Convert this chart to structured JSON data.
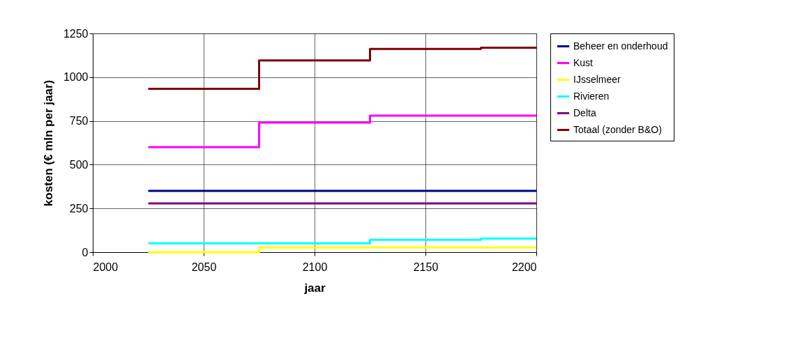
{
  "chart_data": {
    "type": "step",
    "xlabel": "jaar",
    "ylabel": "kosten (€ mln per jaar)",
    "x": [
      2025,
      2075,
      2125,
      2175,
      2200
    ],
    "series": [
      {
        "name": "Beheer en onderhoud",
        "color": "#000080",
        "values": [
          350,
          350,
          350,
          350,
          350
        ]
      },
      {
        "name": "Kust",
        "color": "#ff00ff",
        "values": [
          600,
          740,
          780,
          780,
          780
        ]
      },
      {
        "name": "IJsselmeer",
        "color": "#ffff00",
        "values": [
          0,
          27,
          27,
          27,
          27
        ]
      },
      {
        "name": "Rivieren",
        "color": "#00ffff",
        "values": [
          51,
          51,
          71,
          78,
          78
        ]
      },
      {
        "name": "Delta",
        "color": "#800080",
        "values": [
          279,
          279,
          279,
          279,
          279
        ]
      },
      {
        "name": "Totaal (zonder B&O)",
        "color": "#800000",
        "values": [
          934,
          1096,
          1161,
          1168,
          1168
        ]
      }
    ],
    "xlim": [
      2000,
      2200
    ],
    "xticks": [
      2000,
      2050,
      2100,
      2150,
      2200
    ],
    "ylim": [
      0,
      1250
    ],
    "yticks": [
      0,
      250,
      500,
      750,
      1000,
      1250
    ],
    "grid": true,
    "legend": "right",
    "marker": "none",
    "line_style": "solid"
  }
}
